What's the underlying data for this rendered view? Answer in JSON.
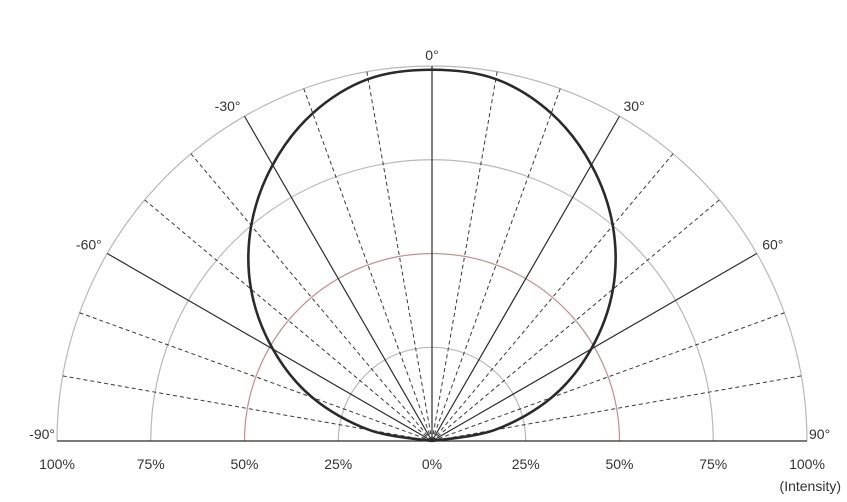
{
  "chart_data": {
    "type": "polar-half",
    "angle_labels": [
      {
        "deg": -90,
        "label": "-90°"
      },
      {
        "deg": -60,
        "label": "-60°"
      },
      {
        "deg": -30,
        "label": "-30°"
      },
      {
        "deg": 0,
        "label": "0°"
      },
      {
        "deg": 30,
        "label": "30°"
      },
      {
        "deg": 60,
        "label": "60°"
      },
      {
        "deg": 90,
        "label": "90°"
      }
    ],
    "radial_tick_labels": [
      "100%",
      "75%",
      "50%",
      "25%",
      "0%",
      "25%",
      "50%",
      "75%",
      "100%"
    ],
    "radial_unit_label": "(Intensity)",
    "radial_range": [
      0,
      100
    ],
    "rings": [
      25,
      50,
      75,
      100
    ],
    "highlight_ring": 50,
    "major_radial_step_deg": 30,
    "minor_radial_step_deg": 10,
    "series": [
      {
        "angles_deg": [
          -90,
          -80,
          -70,
          -60,
          -50,
          -40,
          -30,
          -20,
          -10,
          0,
          10,
          20,
          30,
          40,
          50,
          60,
          70,
          80,
          90
        ],
        "values": [
          0,
          17,
          34,
          49,
          63,
          75,
          85,
          93,
          98,
          99,
          98,
          93,
          85,
          75,
          63,
          49,
          34,
          17,
          0
        ]
      }
    ]
  }
}
